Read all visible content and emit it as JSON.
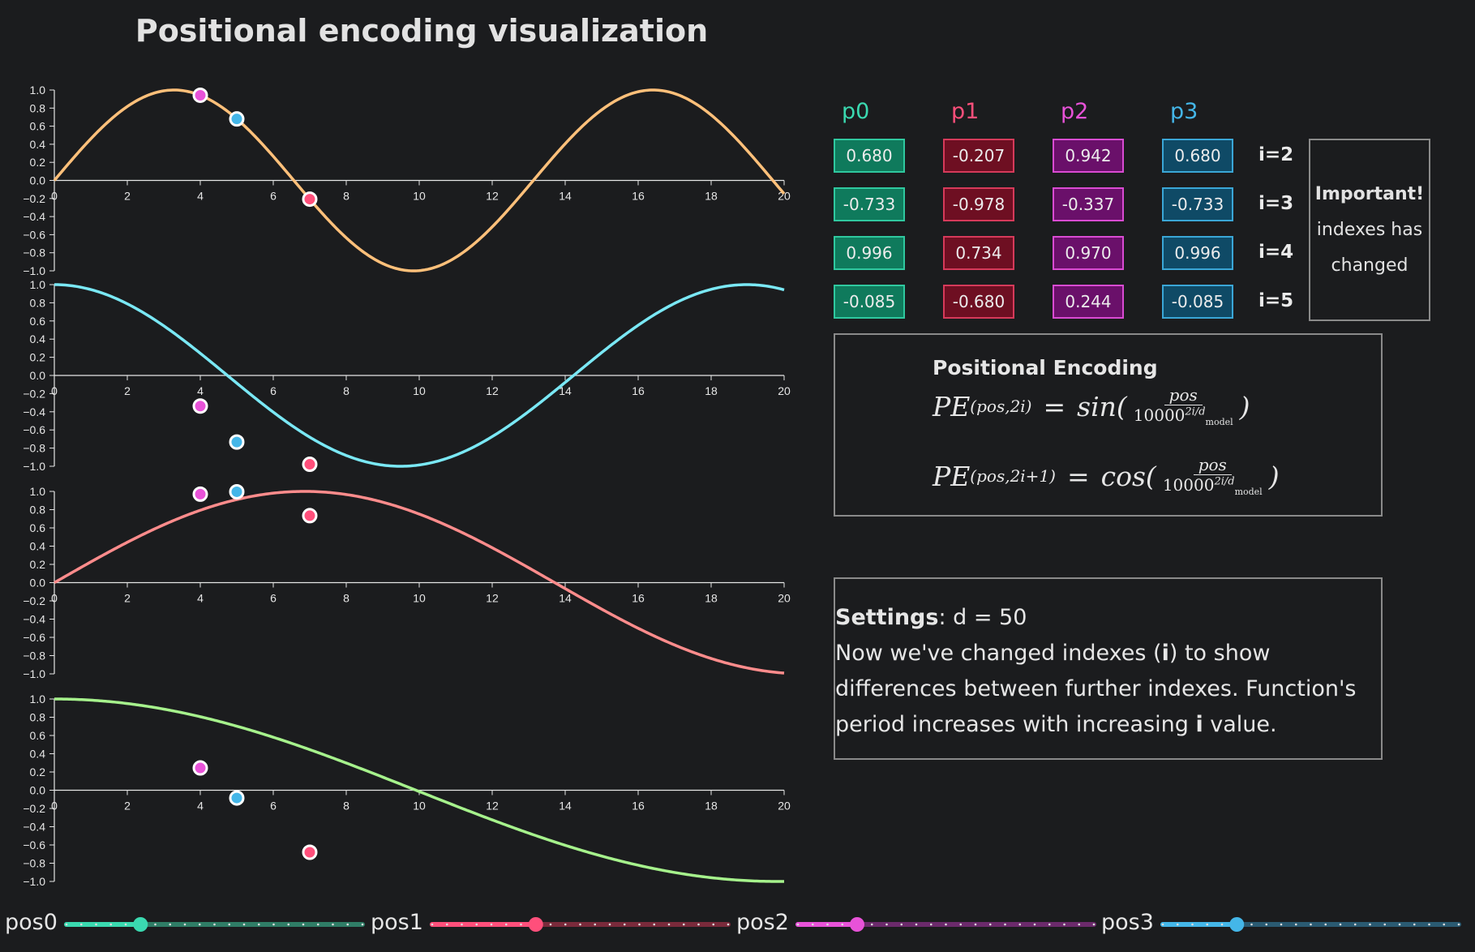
{
  "title": "Positional encoding visualization",
  "colors": {
    "background": "#1b1c1e",
    "axis": "#e6e6e6",
    "curves": [
      "#ffc07a",
      "#7ae8f5",
      "#ff8c8c",
      "#a6f28c"
    ],
    "positions": [
      "#3ad9b0",
      "#ff4f7b",
      "#e852d8",
      "#44b6e8"
    ]
  },
  "table": {
    "columns": [
      {
        "label": "p0",
        "color": "#3ad9b0",
        "bg": "#0f7a5c",
        "border": "#2fc89f"
      },
      {
        "label": "p1",
        "color": "#ff4f7b",
        "bg": "#6e0f22",
        "border": "#d63a5a"
      },
      {
        "label": "p2",
        "color": "#e852d8",
        "bg": "#6a106a",
        "border": "#d94bd2"
      },
      {
        "label": "p3",
        "color": "#44b6e8",
        "bg": "#0f4a66",
        "border": "#3aa6d6"
      }
    ],
    "rows": [
      {
        "label": "i=2",
        "values": [
          "0.680",
          "-0.207",
          "0.942",
          "0.680"
        ]
      },
      {
        "label": "i=3",
        "values": [
          "-0.733",
          "-0.978",
          "-0.337",
          "-0.733"
        ]
      },
      {
        "label": "i=4",
        "values": [
          "0.996",
          "0.734",
          "0.970",
          "0.996"
        ]
      },
      {
        "label": "i=5",
        "values": [
          "-0.085",
          "-0.680",
          "0.244",
          "-0.085"
        ]
      }
    ]
  },
  "important": {
    "heading": "Important!",
    "line1": "indexes has",
    "line2": "changed"
  },
  "formula": {
    "title": "Positional Encoding",
    "pe": "PE",
    "sub_sin": "(pos,2i)",
    "sub_cos": "(pos,2i+1)",
    "eq": "=",
    "sin": "sin(",
    "cos": "cos(",
    "close": ")",
    "num": "pos",
    "den_base": "10000",
    "den_exp": "2i/d",
    "den_sub": "model"
  },
  "settings": {
    "label": "Settings",
    "value": ": d = 50",
    "text_a": "Now we've changed indexes (",
    "text_i": "i",
    "text_b": ") to show differences between further indexes. Function's period increases with increasing ",
    "text_i2": "i",
    "text_c": " value."
  },
  "sliders": [
    {
      "label": "pos0",
      "value": 5,
      "min": 0,
      "max": 20,
      "color": "#3ad9b0",
      "track": "#2f7d66"
    },
    {
      "label": "pos1",
      "value": 7,
      "min": 0,
      "max": 20,
      "color": "#ff4f7b",
      "track": "#7a2a3b"
    },
    {
      "label": "pos2",
      "value": 4,
      "min": 0,
      "max": 20,
      "color": "#e852d8",
      "track": "#6b2a6b"
    },
    {
      "label": "pos3",
      "value": 5,
      "min": 0,
      "max": 20,
      "color": "#44b6e8",
      "track": "#2a5a72"
    }
  ],
  "chart_data": [
    {
      "type": "line",
      "function": "sin",
      "i": 2,
      "d": 50,
      "xlim": [
        0,
        20
      ],
      "ylim": [
        -1,
        1
      ],
      "xticks": [
        0,
        2,
        4,
        6,
        8,
        10,
        12,
        14,
        16,
        18,
        20
      ],
      "yticks": [
        "1.0",
        "0.8",
        "0.6",
        "0.4",
        "0.2",
        "0.0",
        "-0.2",
        "-0.4",
        "-0.6",
        "-0.8",
        "-1.0"
      ],
      "color": "#ffc07a",
      "points": [
        {
          "x": 4,
          "y": 0.942,
          "color": "#e852d8"
        },
        {
          "x": 5,
          "y": 0.68,
          "color": "#44b6e8"
        },
        {
          "x": 7,
          "y": -0.207,
          "color": "#ff4f7b"
        }
      ]
    },
    {
      "type": "line",
      "function": "cos",
      "i": 3,
      "d": 50,
      "xlim": [
        0,
        20
      ],
      "ylim": [
        -1,
        1
      ],
      "xticks": [
        0,
        2,
        4,
        6,
        8,
        10,
        12,
        14,
        16,
        18,
        20
      ],
      "yticks": [
        "1.0",
        "0.8",
        "0.6",
        "0.4",
        "0.2",
        "0.0",
        "-0.2",
        "-0.4",
        "-0.6",
        "-0.8",
        "-1.0"
      ],
      "color": "#7ae8f5",
      "points": [
        {
          "x": 4,
          "y": -0.337,
          "color": "#e852d8"
        },
        {
          "x": 5,
          "y": -0.733,
          "color": "#44b6e8"
        },
        {
          "x": 7,
          "y": -0.978,
          "color": "#ff4f7b"
        }
      ]
    },
    {
      "type": "line",
      "function": "sin",
      "i": 4,
      "d": 50,
      "xlim": [
        0,
        20
      ],
      "ylim": [
        -1,
        1
      ],
      "xticks": [
        0,
        2,
        4,
        6,
        8,
        10,
        12,
        14,
        16,
        18,
        20
      ],
      "yticks": [
        "1.0",
        "0.8",
        "0.6",
        "0.4",
        "0.2",
        "0.0",
        "-0.2",
        "-0.4",
        "-0.6",
        "-0.8",
        "-1.0"
      ],
      "color": "#ff8c8c",
      "points": [
        {
          "x": 4,
          "y": 0.97,
          "color": "#e852d8"
        },
        {
          "x": 5,
          "y": 0.996,
          "color": "#44b6e8"
        },
        {
          "x": 7,
          "y": 0.734,
          "color": "#ff4f7b"
        }
      ]
    },
    {
      "type": "line",
      "function": "cos",
      "i": 5,
      "d": 50,
      "xlim": [
        0,
        20
      ],
      "ylim": [
        -1,
        1
      ],
      "xticks": [
        0,
        2,
        4,
        6,
        8,
        10,
        12,
        14,
        16,
        18,
        20
      ],
      "yticks": [
        "1.0",
        "0.8",
        "0.6",
        "0.4",
        "0.2",
        "0.0",
        "-0.2",
        "-0.4",
        "-0.6",
        "-0.8",
        "-1.0"
      ],
      "color": "#a6f28c",
      "points": [
        {
          "x": 4,
          "y": 0.244,
          "color": "#e852d8"
        },
        {
          "x": 5,
          "y": -0.085,
          "color": "#44b6e8"
        },
        {
          "x": 7,
          "y": -0.68,
          "color": "#ff4f7b"
        }
      ]
    }
  ]
}
